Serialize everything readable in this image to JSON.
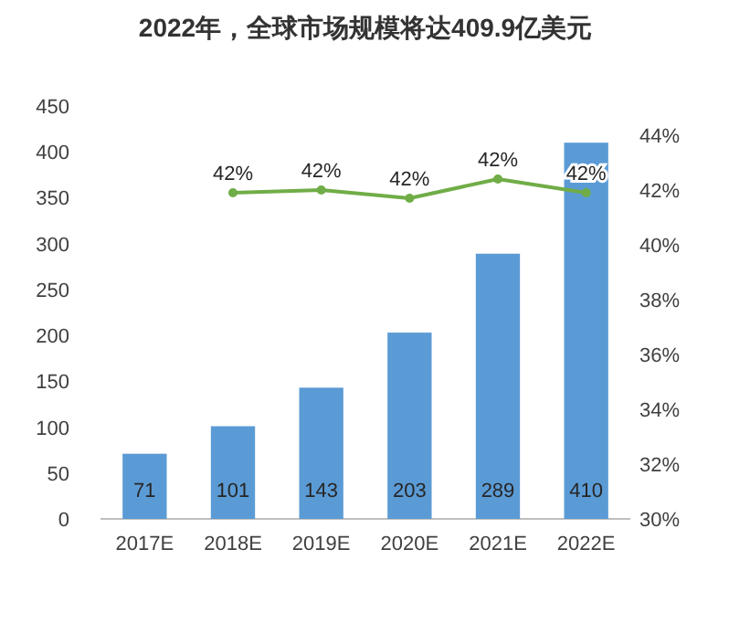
{
  "chart_data": {
    "type": "bar",
    "title": "2022年，全球市场规模将达409.9亿美元",
    "categories": [
      "2017E",
      "2018E",
      "2019E",
      "2020E",
      "2021E",
      "2022E"
    ],
    "series": [
      {
        "color": "#5b9bd5",
        "values": [
          71,
          101,
          143,
          203,
          289,
          410
        ],
        "data_labels": true
      },
      {
        "type": "line",
        "axis": "y2",
        "color": "#70ad47",
        "marker": "circle",
        "line_style": "solid",
        "values": [
          null,
          41.9,
          42.0,
          41.7,
          42.4,
          41.9
        ],
        "value_labels": [
          null,
          "42%",
          "42%",
          "42%",
          "42%",
          "42%"
        ]
      }
    ],
    "ylim": [
      0,
      450
    ],
    "yticks": [
      0,
      50,
      100,
      150,
      200,
      250,
      300,
      350,
      400,
      450
    ],
    "y2lim": [
      30,
      44
    ],
    "y2ticks": [
      {
        "value": 30,
        "label": "30%"
      },
      {
        "value": 32,
        "label": "32%"
      },
      {
        "value": 34,
        "label": "34%"
      },
      {
        "value": 36,
        "label": "36%"
      },
      {
        "value": 38,
        "label": "38%"
      },
      {
        "value": 40,
        "label": "40%"
      },
      {
        "value": 42,
        "label": "42%"
      },
      {
        "value": 44,
        "label": "44%"
      }
    ],
    "grid": false
  }
}
